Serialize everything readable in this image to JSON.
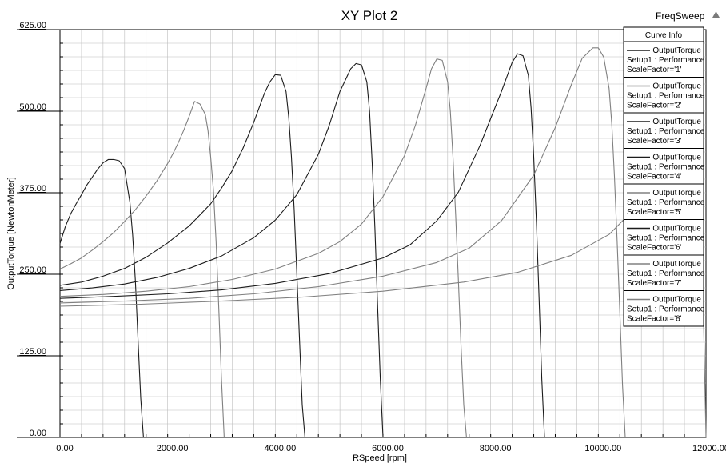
{
  "corner": {
    "label": "FreqSweep",
    "icon": "triangle-up-icon"
  },
  "colors": {
    "dark": "#1c1c1c",
    "light": "#808080",
    "grid": "#bdbdbd",
    "background": "#ffffff"
  },
  "chart_data": {
    "type": "line",
    "title": "XY Plot 2",
    "xlabel": "RSpeed [rpm]",
    "ylabel": "OutputTorque [NewtonMeter]",
    "xlim": [
      0,
      12000
    ],
    "ylim": [
      0,
      625
    ],
    "x_ticks": [
      "0.00",
      "2000.00",
      "4000.00",
      "6000.00",
      "8000.00",
      "10000.00",
      "12000.00"
    ],
    "y_ticks": [
      "0.00",
      "125.00",
      "250.00",
      "375.00",
      "500.00",
      "625.00"
    ],
    "grid": true,
    "legend_position": "top-right",
    "legend_header": "Curve Info",
    "series": [
      {
        "name": "OutputTorque",
        "legend_lines": [
          "OutputTorque",
          "Setup1 : Performance",
          "ScaleFactor='1'"
        ],
        "color": "#1c1c1c",
        "x": [
          0,
          100,
          200,
          300,
          400,
          500,
          600,
          700,
          800,
          900,
          1000,
          1100,
          1200,
          1300,
          1350,
          1400,
          1450,
          1500,
          1550
        ],
        "y": [
          297,
          323,
          343,
          358,
          372,
          387,
          399,
          411,
          421,
          426,
          426,
          424,
          412,
          360,
          310,
          240,
          150,
          60,
          0
        ]
      },
      {
        "name": "OutputTorque",
        "legend_lines": [
          "OutputTorque",
          "Setup1 : Performance",
          "ScaleFactor='2'"
        ],
        "color": "#808080",
        "x": [
          0,
          200,
          400,
          600,
          800,
          1000,
          1200,
          1400,
          1600,
          1800,
          2000,
          2100,
          2200,
          2300,
          2400,
          2500,
          2600,
          2700,
          2750,
          2800,
          2850,
          2900,
          2950,
          3000,
          3050
        ],
        "y": [
          258,
          266,
          275,
          287,
          300,
          314,
          331,
          349,
          370,
          393,
          420,
          435,
          452,
          471,
          492,
          515,
          511,
          495,
          470,
          430,
          380,
          300,
          200,
          90,
          0
        ]
      },
      {
        "name": "OutputTorque",
        "legend_lines": [
          "OutputTorque",
          "Setup1 : Performance",
          "ScaleFactor='3'"
        ],
        "color": "#1c1c1c",
        "x": [
          0,
          400,
          800,
          1200,
          1600,
          2000,
          2400,
          2800,
          3000,
          3200,
          3400,
          3600,
          3800,
          3900,
          4000,
          4100,
          4200,
          4250,
          4300,
          4350,
          4400,
          4450,
          4500,
          4550
        ],
        "y": [
          233,
          238,
          247,
          259,
          276,
          298,
          324,
          358,
          382,
          409,
          443,
          483,
          528,
          545,
          556,
          555,
          530,
          490,
          430,
          350,
          250,
          150,
          50,
          0
        ]
      },
      {
        "name": "OutputTorque",
        "legend_lines": [
          "OutputTorque",
          "Setup1 : Performance",
          "ScaleFactor='4'"
        ],
        "color": "#1c1c1c",
        "x": [
          0,
          600,
          1200,
          1800,
          2400,
          3000,
          3600,
          4000,
          4400,
          4800,
          5000,
          5200,
          5400,
          5500,
          5600,
          5700,
          5750,
          5800,
          5850,
          5900,
          5950,
          6000
        ],
        "y": [
          225,
          229,
          235,
          245,
          259,
          278,
          306,
          333,
          372,
          434,
          478,
          530,
          565,
          573,
          571,
          545,
          500,
          420,
          320,
          200,
          90,
          0
        ]
      },
      {
        "name": "OutputTorque",
        "legend_lines": [
          "OutputTorque",
          "Setup1 : Performance",
          "ScaleFactor='5'"
        ],
        "color": "#808080",
        "x": [
          0,
          800,
          1600,
          2400,
          3200,
          4000,
          4800,
          5200,
          5600,
          6000,
          6400,
          6600,
          6800,
          6900,
          7000,
          7100,
          7200,
          7250,
          7300,
          7350,
          7400,
          7450,
          7500,
          7550
        ],
        "y": [
          216,
          219,
          224,
          231,
          242,
          258,
          282,
          300,
          327,
          369,
          432,
          478,
          535,
          565,
          580,
          578,
          545,
          500,
          430,
          340,
          240,
          140,
          50,
          0
        ]
      },
      {
        "name": "OutputTorque",
        "legend_lines": [
          "OutputTorque",
          "Setup1 : Performance",
          "ScaleFactor='6'"
        ],
        "color": "#1c1c1c",
        "x": [
          0,
          1000,
          2000,
          3000,
          4000,
          5000,
          6000,
          6500,
          7000,
          7400,
          7800,
          8000,
          8200,
          8400,
          8500,
          8600,
          8700,
          8750,
          8800,
          8850,
          8900,
          8950,
          9000
        ],
        "y": [
          213,
          216,
          220,
          226,
          236,
          251,
          275,
          295,
          332,
          376,
          447,
          489,
          530,
          575,
          588,
          585,
          555,
          505,
          430,
          330,
          210,
          90,
          0
        ]
      },
      {
        "name": "OutputTorque",
        "legend_lines": [
          "OutputTorque",
          "Setup1 : Performance",
          "ScaleFactor='7'"
        ],
        "color": "#808080",
        "x": [
          0,
          1200,
          2400,
          3600,
          4800,
          6000,
          7000,
          7600,
          8200,
          8800,
          9200,
          9500,
          9700,
          9900,
          10000,
          10100,
          10200,
          10250,
          10300,
          10350,
          10400,
          10450,
          10500
        ],
        "y": [
          206,
          209,
          213,
          220,
          231,
          247,
          268,
          290,
          332,
          402,
          475,
          541,
          581,
          597,
          597,
          583,
          535,
          480,
          400,
          300,
          190,
          80,
          0
        ]
      },
      {
        "name": "OutputTorque",
        "legend_lines": [
          "OutputTorque",
          "Setup1 : Performance",
          "ScaleFactor='8'"
        ],
        "color": "#808080",
        "x": [
          0,
          1500,
          3000,
          4500,
          6000,
          7500,
          8500,
          9500,
          10200,
          10800,
          11200,
          11500,
          11700,
          11900,
          11950,
          12000
        ],
        "y": [
          201,
          204,
          209,
          215,
          224,
          238,
          253,
          279,
          311,
          361,
          412,
          470,
          510,
          390,
          200,
          0
        ]
      }
    ]
  }
}
